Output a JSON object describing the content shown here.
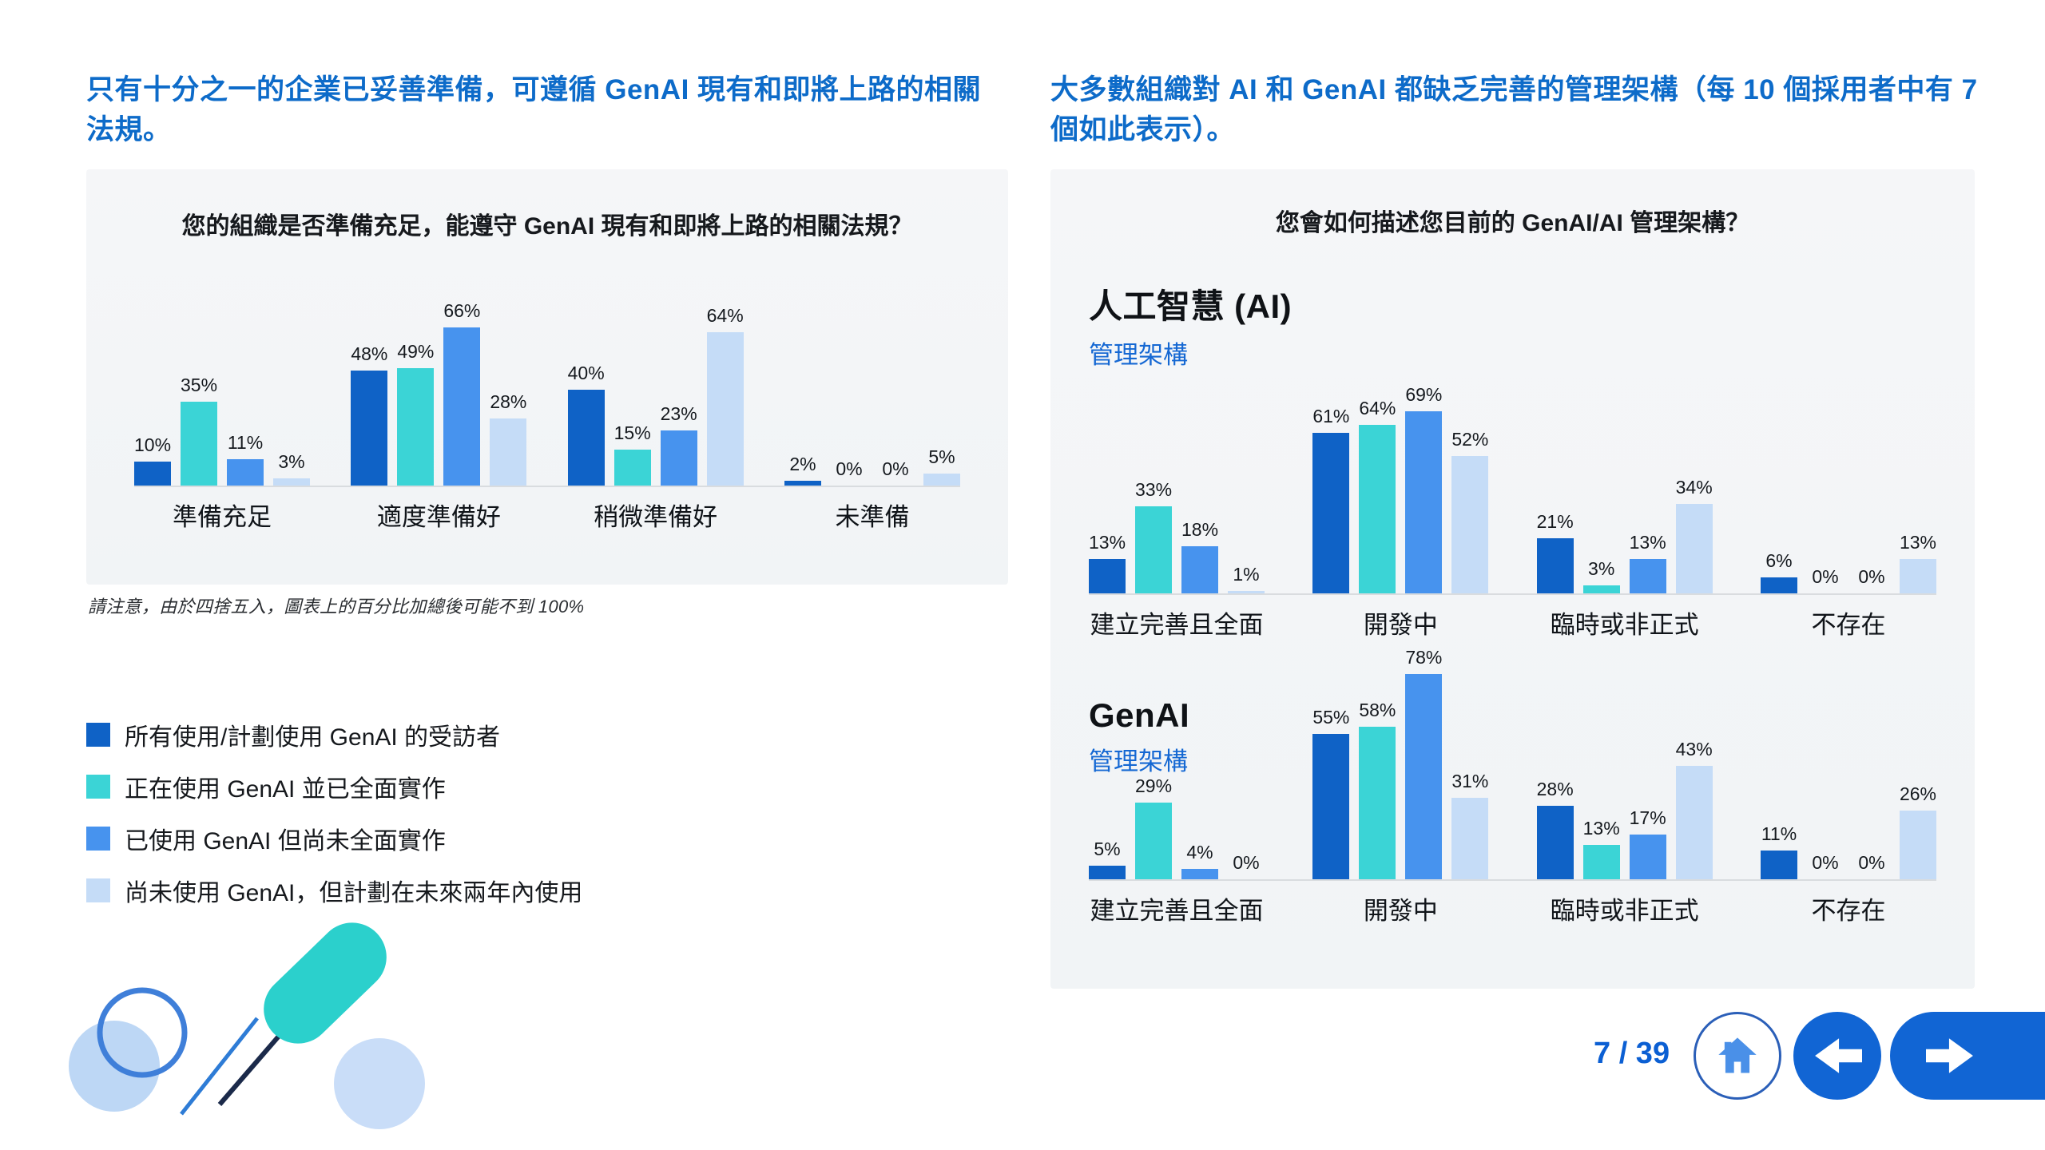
{
  "page": {
    "left_headline": "只有十分之一的企業已妥善準備，可遵循 GenAI 現有和即將上路的相關法規。",
    "right_headline": "大多數組織對 AI 和 GenAI 都缺乏完善的管理架構（每 10 個採用者中有 7 個如此表示）。",
    "footnote": "請注意，由於四捨五入，圖表上的百分比加總後可能不到 100%",
    "page_indicator": "7 / 39"
  },
  "right_card": {
    "title": "您會如何描述您目前的 GenAI/AI 管理架構？"
  },
  "legend": {
    "items": [
      {
        "label": "所有使用/計劃使用 GenAI 的受訪者",
        "color": "#0F62C6"
      },
      {
        "label": "正在使用 GenAI 並已全面實作",
        "color": "#3BD4D6"
      },
      {
        "label": "已使用 GenAI 但尚未全面實作",
        "color": "#4793EE"
      },
      {
        "label": "尚未使用 GenAI，但計劃在未來兩年內使用",
        "color": "#C5DCF7"
      }
    ]
  },
  "colors": {
    "headline_blue": "#0D6BC9",
    "nav_blue": "#1165D4",
    "series_1": "#0F62C6",
    "series_2": "#3BD4D6",
    "series_3": "#4793EE",
    "series_4": "#C5DCF7",
    "card_background": "#F3F5F7",
    "baseline_gray": "#D9DCDF",
    "teal_decoration": "#2BD0CC"
  },
  "chart_data": [
    {
      "id": "readiness",
      "type": "bar",
      "title": "您的組織是否準備充足，能遵守 GenAI 現有和即將上路的相關法規？",
      "categories": [
        "準備充足",
        "適度準備好",
        "稍微準備好",
        "未準備"
      ],
      "series": [
        {
          "name": "所有使用/計劃使用 GenAI 的受訪者",
          "color": "#0F62C6",
          "values": [
            10,
            48,
            40,
            2
          ]
        },
        {
          "name": "正在使用 GenAI 並已全面實作",
          "color": "#3BD4D6",
          "values": [
            35,
            49,
            15,
            0
          ]
        },
        {
          "name": "已使用 GenAI 但尚未全面實作",
          "color": "#4793EE",
          "values": [
            11,
            66,
            23,
            0
          ]
        },
        {
          "name": "尚未使用 GenAI，但計劃在未來兩年內使用",
          "color": "#C5DCF7",
          "values": [
            3,
            28,
            64,
            5
          ]
        }
      ],
      "value_suffix": "%",
      "ylim": [
        0,
        70
      ],
      "grid": false,
      "legend_position": "bottom-left-of-page"
    },
    {
      "id": "ai_governance",
      "type": "bar",
      "section_title": "人工智慧 (AI)",
      "section_subtitle": "管理架構",
      "categories": [
        "建立完善且全面",
        "開發中",
        "臨時或非正式",
        "不存在"
      ],
      "series": [
        {
          "name": "所有使用/計劃使用 GenAI 的受訪者",
          "color": "#0F62C6",
          "values": [
            13,
            61,
            21,
            6
          ]
        },
        {
          "name": "正在使用 GenAI 並已全面實作",
          "color": "#3BD4D6",
          "values": [
            33,
            64,
            3,
            0
          ]
        },
        {
          "name": "已使用 GenAI 但尚未全面實作",
          "color": "#4793EE",
          "values": [
            18,
            69,
            13,
            0
          ]
        },
        {
          "name": "尚未使用 GenAI，但計劃在未來兩年內使用",
          "color": "#C5DCF7",
          "values": [
            1,
            52,
            34,
            13
          ]
        }
      ],
      "value_suffix": "%",
      "ylim": [
        0,
        75
      ],
      "grid": false
    },
    {
      "id": "genai_governance",
      "type": "bar",
      "section_title": "GenAI",
      "section_subtitle": "管理架構",
      "categories": [
        "建立完善且全面",
        "開發中",
        "臨時或非正式",
        "不存在"
      ],
      "series": [
        {
          "name": "所有使用/計劃使用 GenAI 的受訪者",
          "color": "#0F62C6",
          "values": [
            5,
            55,
            28,
            11
          ]
        },
        {
          "name": "正在使用 GenAI 並已全面實作",
          "color": "#3BD4D6",
          "values": [
            29,
            58,
            13,
            0
          ]
        },
        {
          "name": "已使用 GenAI 但尚未全面實作",
          "color": "#4793EE",
          "values": [
            4,
            78,
            17,
            0
          ]
        },
        {
          "name": "尚未使用 GenAI，但計劃在未來兩年內使用",
          "color": "#C5DCF7",
          "values": [
            0,
            31,
            43,
            26
          ]
        }
      ],
      "value_suffix": "%",
      "ylim": [
        0,
        85
      ],
      "grid": false
    }
  ]
}
